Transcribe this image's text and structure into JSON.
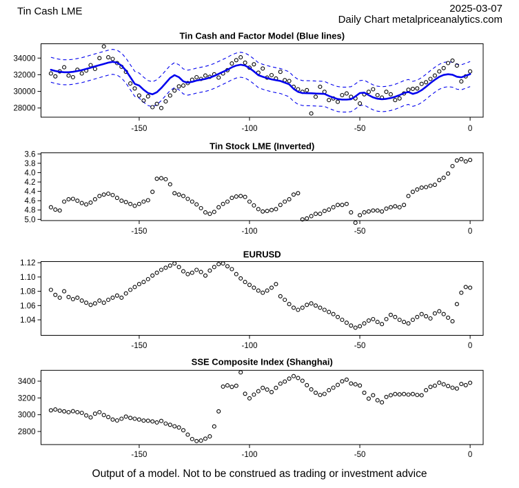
{
  "header": {
    "title": "Tin Cash LME",
    "date": "2025-03-07",
    "subtitle": "Daily Chart metalpriceanalytics.com"
  },
  "footer": {
    "disclaimer": "Output of a model. Not to be construed as trading or investment advice"
  },
  "colors": {
    "model": "#0000EE",
    "points": "#000000",
    "axis": "#000000",
    "background": "#FFFFFF"
  },
  "x_axis": {
    "label_ticks": [
      -150,
      -100,
      -50,
      0
    ],
    "xlim": [
      -194.5,
      5.9
    ]
  },
  "x": [
    -190,
    -188,
    -186,
    -184,
    -182,
    -180,
    -178,
    -176,
    -174,
    -172,
    -170,
    -168,
    -166,
    -164,
    -162,
    -160,
    -158,
    -156,
    -154,
    -152,
    -150,
    -148,
    -146,
    -144,
    -142,
    -140,
    -138,
    -136,
    -134,
    -132,
    -130,
    -128,
    -126,
    -124,
    -122,
    -120,
    -118,
    -116,
    -114,
    -112,
    -110,
    -108,
    -106,
    -104,
    -102,
    -100,
    -98,
    -96,
    -94,
    -92,
    -90,
    -88,
    -86,
    -84,
    -82,
    -80,
    -78,
    -76,
    -74,
    -72,
    -70,
    -68,
    -66,
    -64,
    -62,
    -60,
    -58,
    -56,
    -54,
    -52,
    -50,
    -48,
    -46,
    -44,
    -42,
    -40,
    -38,
    -36,
    -34,
    -32,
    -30,
    -28,
    -26,
    -24,
    -22,
    -20,
    -18,
    -16,
    -14,
    -12,
    -10,
    -8,
    -6,
    -4,
    -2,
    0
  ],
  "chart_data": [
    {
      "type": "scatter",
      "title": "Tin Cash and Factor Model (Blue lines)",
      "y_top": 35720,
      "y_bottom": 26900,
      "y_inverted": false,
      "yticks": {
        "values": [
          28000,
          30000,
          32000,
          34000
        ],
        "labels": [
          "28000",
          "30000",
          "32000",
          "34000"
        ]
      },
      "xticks": {
        "values": [
          -150,
          -100,
          -50,
          0
        ],
        "labels": [
          "-150",
          "-100",
          "-50",
          "0"
        ]
      },
      "series": [
        {
          "id": "confidence-band",
          "style": "band",
          "base": "model-line",
          "offset": 1500
        },
        {
          "id": "tin-cash-points",
          "style": "points",
          "values": [
            32150,
            31800,
            32400,
            32900,
            31900,
            31700,
            32600,
            32150,
            32500,
            33150,
            32700,
            34000,
            35400,
            34100,
            33900,
            33400,
            32950,
            32350,
            30950,
            30350,
            29500,
            28900,
            29400,
            28100,
            28500,
            28000,
            28800,
            29500,
            30100,
            30600,
            30700,
            31000,
            31400,
            31700,
            31500,
            31900,
            31750,
            32050,
            31650,
            32150,
            32550,
            33350,
            33750,
            34100,
            33450,
            32850,
            33250,
            32250,
            32750,
            31650,
            31950,
            31550,
            32350,
            31350,
            31250,
            30550,
            30250,
            29950,
            30150,
            27350,
            29350,
            30550,
            29950,
            28950,
            29150,
            28750,
            29550,
            29750,
            29350,
            29150,
            28550,
            29650,
            29950,
            30250,
            29550,
            29250,
            29950,
            29650,
            28950,
            29150,
            29750,
            30200,
            30300,
            30350,
            30900,
            31100,
            31500,
            31900,
            32400,
            32800,
            33400,
            33700,
            33100,
            31200,
            31800,
            32400
          ]
        },
        {
          "id": "model-line",
          "style": "line",
          "values": [
            32600,
            32450,
            32350,
            32300,
            32300,
            32350,
            32450,
            32550,
            32700,
            32850,
            33000,
            33150,
            33300,
            33450,
            33550,
            33450,
            33100,
            32500,
            31700,
            30900,
            30700,
            30200,
            29800,
            29650,
            29900,
            30400,
            31000,
            31600,
            31950,
            31700,
            31200,
            31050,
            31150,
            31300,
            31400,
            31500,
            31650,
            31850,
            32100,
            32350,
            32600,
            32900,
            33100,
            33200,
            33100,
            32800,
            32400,
            31950,
            31750,
            31600,
            31450,
            31350,
            31250,
            31050,
            30850,
            30300,
            29950,
            29800,
            29780,
            29770,
            29740,
            29720,
            29700,
            29450,
            29250,
            29080,
            29010,
            29010,
            29060,
            29400,
            29800,
            29850,
            29550,
            29280,
            29120,
            29060,
            29100,
            29200,
            29350,
            29550,
            29800,
            29930,
            29700,
            29850,
            30150,
            30550,
            31000,
            31400,
            31750,
            31980,
            32060,
            32000,
            31760,
            31690,
            31880,
            32080
          ]
        }
      ]
    },
    {
      "type": "scatter",
      "title": "Tin Stock LME (Inverted)",
      "y_top": 3.576,
      "y_bottom": 5.025,
      "y_inverted": true,
      "yticks": {
        "values": [
          3.6,
          3.8,
          4.0,
          4.2,
          4.4,
          4.6,
          4.8,
          5.0
        ],
        "labels": [
          "3.6",
          "3.8",
          "4.0",
          "4.2",
          "4.4",
          "4.6",
          "4.8",
          "5.0"
        ]
      },
      "xticks": {
        "values": [
          -150,
          -100,
          -50,
          0
        ],
        "labels": [
          "-150",
          "-100",
          "-50",
          "0"
        ]
      },
      "series": [
        {
          "id": "tin-stock-points",
          "style": "points",
          "values": [
            4.74,
            4.79,
            4.81,
            4.62,
            4.57,
            4.56,
            4.6,
            4.65,
            4.68,
            4.64,
            4.57,
            4.5,
            4.47,
            4.45,
            4.48,
            4.54,
            4.6,
            4.63,
            4.67,
            4.71,
            4.67,
            4.62,
            4.59,
            4.41,
            4.13,
            4.12,
            4.14,
            4.25,
            4.44,
            4.47,
            4.5,
            4.56,
            4.62,
            4.68,
            4.76,
            4.85,
            4.88,
            4.84,
            4.74,
            4.67,
            4.62,
            4.54,
            4.51,
            4.5,
            4.52,
            4.62,
            4.7,
            4.78,
            4.83,
            4.82,
            4.8,
            4.78,
            4.69,
            4.62,
            4.57,
            4.47,
            4.44,
            5.0,
            4.98,
            4.93,
            4.88,
            4.88,
            4.82,
            4.79,
            4.74,
            4.69,
            4.69,
            4.67,
            4.85,
            5.07,
            4.91,
            4.85,
            4.83,
            4.81,
            4.81,
            4.83,
            4.77,
            4.74,
            4.72,
            4.74,
            4.69,
            4.5,
            4.41,
            4.36,
            4.32,
            4.31,
            4.28,
            4.26,
            4.16,
            4.11,
            4.02,
            3.86,
            3.74,
            3.71,
            3.76,
            3.73
          ]
        }
      ]
    },
    {
      "type": "scatter",
      "title": "EURUSD",
      "y_top": 1.1216,
      "y_bottom": 1.0183,
      "y_inverted": false,
      "yticks": {
        "values": [
          1.04,
          1.06,
          1.08,
          1.1,
          1.12
        ],
        "labels": [
          "1.04",
          "1.06",
          "1.08",
          "1.10",
          "1.12"
        ]
      },
      "xticks": {
        "values": [
          -150,
          -100,
          -50,
          0
        ],
        "labels": [
          "-150",
          "-100",
          "-50",
          "0"
        ]
      },
      "series": [
        {
          "id": "eurusd-points",
          "style": "points",
          "values": [
            1.082,
            1.075,
            1.071,
            1.08,
            1.072,
            1.069,
            1.071,
            1.067,
            1.064,
            1.061,
            1.063,
            1.067,
            1.064,
            1.068,
            1.071,
            1.074,
            1.071,
            1.077,
            1.082,
            1.086,
            1.09,
            1.093,
            1.097,
            1.102,
            1.106,
            1.11,
            1.113,
            1.116,
            1.119,
            1.114,
            1.108,
            1.104,
            1.106,
            1.11,
            1.107,
            1.102,
            1.109,
            1.114,
            1.118,
            1.119,
            1.115,
            1.111,
            1.104,
            1.098,
            1.093,
            1.089,
            1.085,
            1.081,
            1.078,
            1.081,
            1.085,
            1.09,
            1.073,
            1.068,
            1.062,
            1.057,
            1.054,
            1.057,
            1.061,
            1.063,
            1.06,
            1.057,
            1.054,
            1.051,
            1.048,
            1.044,
            1.04,
            1.036,
            1.032,
            1.029,
            1.031,
            1.035,
            1.039,
            1.041,
            1.037,
            1.034,
            1.041,
            1.047,
            1.044,
            1.04,
            1.037,
            1.035,
            1.04,
            1.044,
            1.048,
            1.045,
            1.042,
            1.049,
            1.052,
            1.048,
            1.043,
            1.038,
            1.062,
            1.078,
            1.086,
            1.085
          ]
        }
      ]
    },
    {
      "type": "scatter",
      "title": "SSE Composite Index (Shanghai)",
      "y_top": 3529,
      "y_bottom": 2644,
      "y_inverted": false,
      "yticks": {
        "values": [
          2800,
          3000,
          3200,
          3400
        ],
        "labels": [
          "2800",
          "3000",
          "3200",
          "3400"
        ]
      },
      "xticks": {
        "values": [
          -150,
          -100,
          -50,
          0
        ],
        "labels": [
          "-150",
          "-100",
          "-50",
          "0"
        ]
      },
      "series": [
        {
          "id": "sse-points",
          "style": "points",
          "values": [
            3052,
            3062,
            3048,
            3040,
            3030,
            3042,
            3030,
            3022,
            2992,
            2968,
            3012,
            3030,
            2996,
            2972,
            2942,
            2932,
            2952,
            2978,
            2962,
            2952,
            2942,
            2930,
            2928,
            2920,
            2908,
            2926,
            2895,
            2880,
            2862,
            2848,
            2815,
            2762,
            2710,
            2686,
            2692,
            2715,
            2742,
            2860,
            3040,
            3335,
            3350,
            3332,
            3345,
            3505,
            3250,
            3195,
            3240,
            3280,
            3320,
            3300,
            3270,
            3320,
            3370,
            3395,
            3430,
            3460,
            3438,
            3405,
            3352,
            3302,
            3262,
            3236,
            3248,
            3292,
            3322,
            3356,
            3398,
            3418,
            3372,
            3362,
            3348,
            3262,
            3192,
            3232,
            3172,
            3148,
            3212,
            3232,
            3246,
            3242,
            3246,
            3240,
            3246,
            3236,
            3232,
            3292,
            3332,
            3346,
            3382,
            3362,
            3342,
            3322,
            3312,
            3366,
            3352,
            3380
          ]
        }
      ]
    }
  ]
}
